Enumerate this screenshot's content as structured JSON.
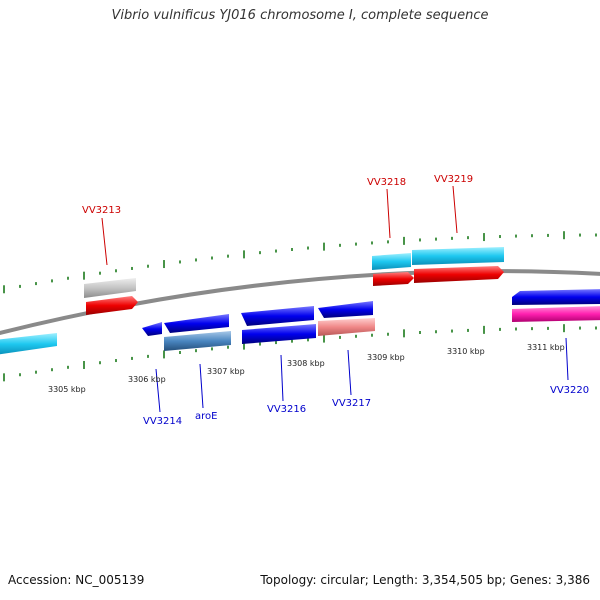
{
  "title": "Vibrio vulnificus YJ016 chromosome I, complete sequence",
  "footer": {
    "accession": "Accession: NC_005139",
    "summary": "Topology: circular; Length: 3,354,505 bp; Genes: 3,386"
  },
  "colors": {
    "backbone": "#8a8a8a",
    "tick": "#1a7a1a",
    "top_label": "#cc0000",
    "bottom_label": "#0000cc"
  },
  "scale_labels": [
    "3305 kbp",
    "3306 kbp",
    "3307 kbp",
    "3308 kbp",
    "3309 kbp",
    "3310 kbp",
    "3311 kbp"
  ],
  "top_labels": [
    "VV3213",
    "VV3218",
    "VV3219"
  ],
  "bottom_labels": [
    "VV3214",
    "aroE",
    "VV3216",
    "VV3217",
    "VV3220"
  ]
}
